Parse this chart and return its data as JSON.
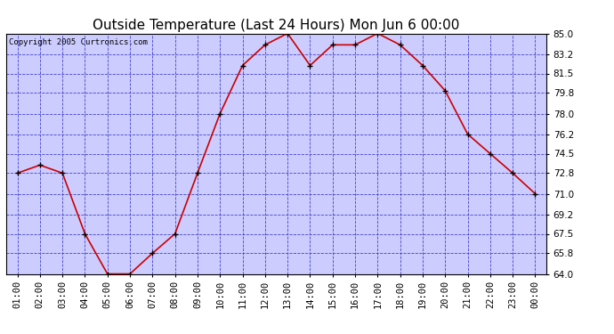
{
  "title": "Outside Temperature (Last 24 Hours) Mon Jun 6 00:00",
  "copyright": "Copyright 2005 Curtronics.com",
  "x_labels": [
    "01:00",
    "02:00",
    "03:00",
    "04:00",
    "05:00",
    "06:00",
    "07:00",
    "08:00",
    "09:00",
    "10:00",
    "11:00",
    "12:00",
    "13:00",
    "14:00",
    "15:00",
    "16:00",
    "17:00",
    "18:00",
    "19:00",
    "20:00",
    "21:00",
    "22:00",
    "23:00",
    "00:00"
  ],
  "y_values": [
    72.8,
    73.5,
    72.8,
    67.5,
    64.0,
    64.0,
    65.8,
    67.5,
    72.8,
    78.0,
    82.2,
    84.0,
    85.0,
    82.2,
    84.0,
    84.0,
    85.0,
    84.0,
    82.2,
    80.0,
    76.2,
    74.5,
    72.8,
    71.0
  ],
  "ylim": [
    64.0,
    85.0
  ],
  "yticks": [
    64.0,
    65.8,
    67.5,
    69.2,
    71.0,
    72.8,
    74.5,
    76.2,
    78.0,
    79.8,
    81.5,
    83.2,
    85.0
  ],
  "line_color": "#cc0000",
  "marker_color": "#000000",
  "bg_color": "#ccccff",
  "grid_color": "#4444cc",
  "border_color": "#000000",
  "title_fontsize": 11,
  "tick_fontsize": 7.5,
  "copyright_fontsize": 6.5
}
